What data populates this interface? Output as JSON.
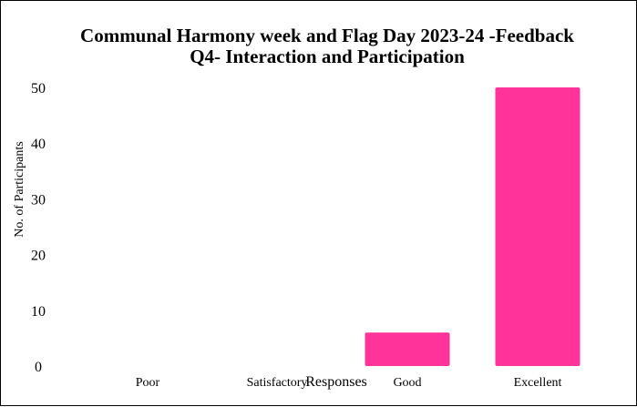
{
  "chart_data": {
    "type": "bar",
    "title": "Communal Harmony week and Flag Day 2023-24 -Feedback",
    "subtitle": "Q4- Interaction and Participation",
    "xlabel": "Responses",
    "ylabel": "No. of Participants",
    "categories": [
      "Poor",
      "Satisfactory",
      "Good",
      "Excellent"
    ],
    "values": [
      0,
      0,
      6,
      50
    ],
    "ylim": [
      0,
      50
    ],
    "yticks": [
      "0",
      "10",
      "20",
      "30",
      "40",
      "50"
    ],
    "bar_color": "#ff3399",
    "grid": false,
    "legend": "none"
  }
}
